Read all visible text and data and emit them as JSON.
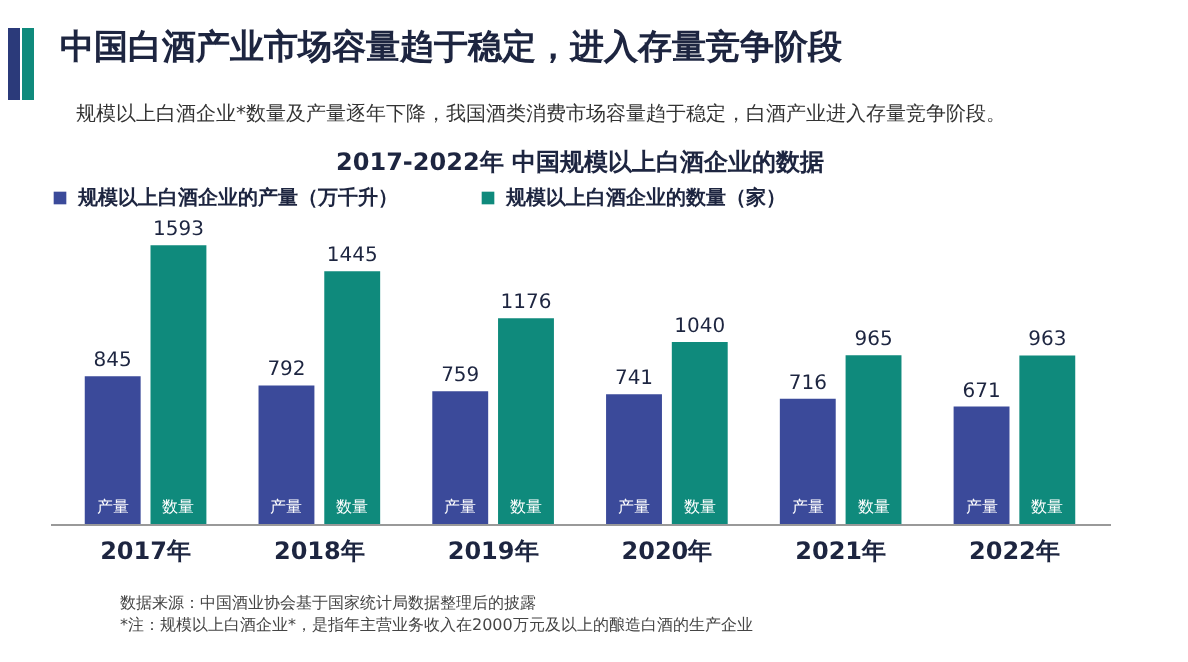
{
  "chart_data": {
    "type": "bar",
    "title": "中国白酒产业市场容量趋于稳定，进入存量竞争阶段",
    "subtitle": "规模以上白酒企业*数量及产量逐年下降，我国酒类消费市场容量趋于稳定，白酒产业进入存量竞争阶段。",
    "categories": [
      "2017年",
      "2018年",
      "2019年",
      "2020年",
      "2021年",
      "2022年"
    ],
    "series": [
      {
        "name": "规模以上白酒企业的产量（万千升）",
        "color": "#3b4a9a",
        "values": [
          845,
          792,
          759,
          741,
          716,
          671
        ]
      },
      {
        "name": "规模以上白酒企业的数量（家）",
        "color": "#0f8a7c",
        "values": [
          1593,
          1445,
          1176,
          1040,
          965,
          963
        ]
      }
    ],
    "data_labels": true,
    "legend": "top",
    "grid": false,
    "annotations": [
      "2017-2022年 中国规模以上白酒企业的数据",
      "数据来源：中国酒业协会基于国家统计局数据整理后的披露",
      "*注：规模以上白酒企业*，是指年主营业务收入在2000万元及以上的酿造白酒的生产企业",
      {
        "text": "产量",
        "x": "2017年",
        "y": 0
      },
      {
        "text": "数量",
        "x": "2017年",
        "y": 0
      },
      {
        "text": "产量",
        "x": "2018年",
        "y": 0
      },
      {
        "text": "数量",
        "x": "2018年",
        "y": 0
      },
      {
        "text": "产量",
        "x": "2019年",
        "y": 0
      },
      {
        "text": "数量",
        "x": "2019年",
        "y": 0
      },
      {
        "text": "产量",
        "x": "2020年",
        "y": 0
      },
      {
        "text": "数量",
        "x": "2020年",
        "y": 0
      },
      {
        "text": "产量",
        "x": "2021年",
        "y": 0
      },
      {
        "text": "数量",
        "x": "2021年",
        "y": 0
      },
      {
        "text": "产量",
        "x": "2022年",
        "y": 0
      },
      {
        "text": "数量",
        "x": "2022年",
        "y": 0
      }
    ]
  }
}
